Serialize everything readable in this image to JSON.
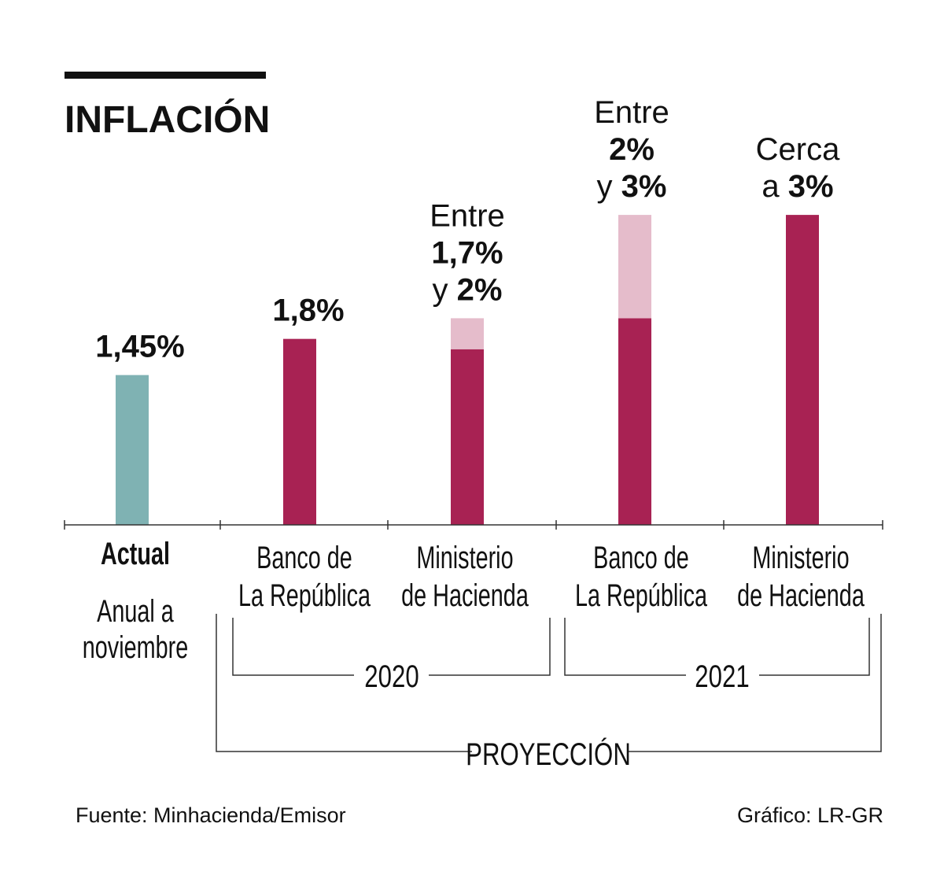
{
  "title": "INFLACIÓN",
  "source": "Fuente: Minhacienda/Emisor",
  "credit": "Gráfico: LR-GR",
  "colors": {
    "actual": "#7fb2b3",
    "main": "#a82253",
    "range": "#e5bccb",
    "text": "#111111"
  },
  "groups": {
    "g2020": "2020",
    "g2021": "2021",
    "projection": "PROYECCIÓN"
  },
  "chart_data": {
    "type": "bar",
    "title": "INFLACIÓN",
    "ylim": [
      0,
      3
    ],
    "unit": "%",
    "bars": [
      {
        "category": [
          "Actual"
        ],
        "sublabel": [
          "Anual a",
          "noviembre"
        ],
        "low": 1.45,
        "high": 1.45,
        "kind": "actual",
        "label": [
          [
            {
              "t": "1,45%",
              "b": true
            }
          ]
        ]
      },
      {
        "category": [
          "Banco de",
          "La República"
        ],
        "year": "2020",
        "low": 1.8,
        "high": 1.8,
        "kind": "projection",
        "label": [
          [
            {
              "t": "1,8%",
              "b": true
            }
          ]
        ]
      },
      {
        "category": [
          "Ministerio",
          "de Hacienda"
        ],
        "year": "2020",
        "low": 1.7,
        "high": 2.0,
        "kind": "projection",
        "label": [
          [
            {
              "t": "Entre",
              "b": false
            }
          ],
          [
            {
              "t": "1,7%",
              "b": true
            }
          ],
          [
            {
              "t": "y ",
              "b": false
            },
            {
              "t": "2%",
              "b": true
            }
          ]
        ]
      },
      {
        "category": [
          "Banco de",
          "La República"
        ],
        "year": "2021",
        "low": 2.0,
        "high": 3.0,
        "kind": "projection",
        "label": [
          [
            {
              "t": "Entre",
              "b": false
            }
          ],
          [
            {
              "t": "2%",
              "b": true
            }
          ],
          [
            {
              "t": "y ",
              "b": false
            },
            {
              "t": "3%",
              "b": true
            }
          ]
        ]
      },
      {
        "category": [
          "Ministerio",
          "de Hacienda"
        ],
        "year": "2021",
        "low": 3.0,
        "high": 3.0,
        "kind": "projection",
        "label": [
          [
            {
              "t": "Cerca",
              "b": false
            }
          ],
          [
            {
              "t": "a ",
              "b": false
            },
            {
              "t": "3%",
              "b": true
            }
          ]
        ]
      }
    ]
  }
}
